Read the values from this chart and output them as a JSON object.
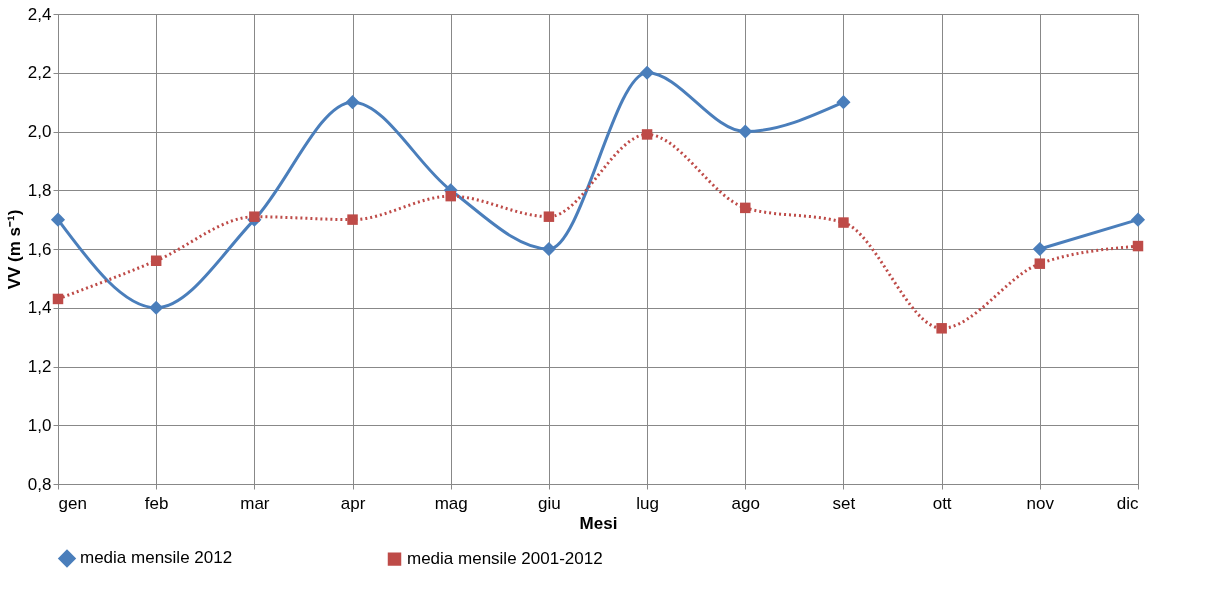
{
  "chart_data": {
    "type": "line",
    "xlabel": "Mesi",
    "ylabel": "VV (m s⁻¹)",
    "categories": [
      "gen",
      "feb",
      "mar",
      "apr",
      "mag",
      "giu",
      "lug",
      "ago",
      "set",
      "ott",
      "nov",
      "dic"
    ],
    "ylim": [
      0.8,
      2.4
    ],
    "yticks": [
      {
        "value": 0.8,
        "label": "0,8"
      },
      {
        "value": 1.0,
        "label": "1,0"
      },
      {
        "value": 1.2,
        "label": "1,2"
      },
      {
        "value": 1.4,
        "label": "1,4"
      },
      {
        "value": 1.6,
        "label": "1,6"
      },
      {
        "value": 1.8,
        "label": "1,8"
      },
      {
        "value": 2.0,
        "label": "2,0"
      },
      {
        "value": 2.2,
        "label": "2,2"
      },
      {
        "value": 2.4,
        "label": "2,4"
      }
    ],
    "grid": true,
    "legend": "bottom",
    "series": [
      {
        "name": "media mensile 2012",
        "color": "#4a7ebb",
        "marker": "diamond",
        "line_style": "solid",
        "values": [
          1.7,
          1.4,
          1.7,
          2.1,
          1.8,
          1.6,
          2.2,
          2.0,
          2.1,
          null,
          1.6,
          1.7
        ]
      },
      {
        "name": "media mensile 2001-2012",
        "color": "#be4b48",
        "marker": "square",
        "line_style": "dotted",
        "values": [
          1.43,
          1.56,
          1.71,
          1.7,
          1.78,
          1.71,
          1.99,
          1.74,
          1.69,
          1.33,
          1.55,
          1.61
        ]
      }
    ]
  }
}
